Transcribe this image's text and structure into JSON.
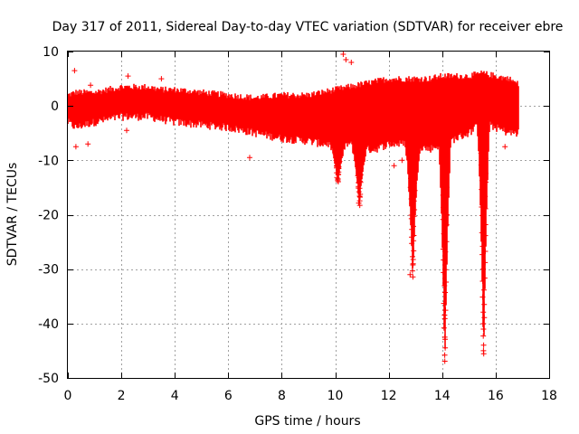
{
  "chart_data": {
    "type": "scatter",
    "title": "Day 317 of 2011, Sidereal Day-to-day VTEC variation (SDTVAR) for receiver ebre",
    "xlabel": "GPS time / hours",
    "ylabel": "SDTVAR / TECUs",
    "xlim": [
      0,
      18
    ],
    "ylim": [
      -50,
      10
    ],
    "xticks": [
      0,
      2,
      4,
      6,
      8,
      10,
      12,
      14,
      16,
      18
    ],
    "yticks": [
      -50,
      -40,
      -30,
      -20,
      -10,
      0,
      10
    ],
    "grid": true,
    "marker": "+",
    "color": "#ff0000",
    "series": [
      {
        "name": "SDTVAR",
        "band": {
          "x": [
            0.0,
            0.3,
            0.6,
            1.0,
            1.5,
            2.0,
            2.5,
            3.0,
            3.5,
            4.0,
            5.0,
            6.0,
            7.0,
            8.0,
            9.0,
            9.5,
            10.0,
            10.5,
            11.0,
            11.5,
            12.0,
            12.5,
            13.0,
            13.5,
            14.0,
            14.5,
            15.0,
            15.5,
            16.0,
            16.5,
            16.85
          ],
          "upper": [
            2.0,
            2.5,
            2.5,
            2.5,
            3.0,
            3.5,
            3.5,
            3.5,
            3.0,
            3.0,
            2.5,
            2.0,
            1.5,
            2.0,
            2.0,
            2.5,
            3.0,
            3.5,
            4.0,
            4.5,
            5.0,
            5.0,
            5.0,
            5.0,
            5.5,
            5.5,
            5.5,
            6.0,
            5.5,
            5.0,
            4.0
          ],
          "lower": [
            -3.0,
            -4.0,
            -3.5,
            -3.0,
            -2.5,
            -2.0,
            -2.0,
            -2.0,
            -2.5,
            -3.0,
            -3.5,
            -4.0,
            -5.0,
            -6.0,
            -6.5,
            -7.0,
            -7.0,
            -7.0,
            -8.0,
            -8.0,
            -7.0,
            -7.0,
            -7.0,
            -8.0,
            -7.0,
            -6.0,
            -5.0,
            -3.0,
            -4.0,
            -5.0,
            -5.0
          ]
        },
        "dips": [
          {
            "center": 10.1,
            "width": 0.35,
            "min": -14
          },
          {
            "center": 10.9,
            "width": 0.3,
            "min": -18
          },
          {
            "center": 12.9,
            "width": 0.3,
            "min": -31
          },
          {
            "center": 14.1,
            "width": 0.25,
            "min": -47
          },
          {
            "center": 15.55,
            "width": 0.25,
            "min": -46
          }
        ],
        "spikes": [
          {
            "x": 0.25,
            "y": 6.5
          },
          {
            "x": 0.3,
            "y": -7.5
          },
          {
            "x": 0.75,
            "y": -7
          },
          {
            "x": 0.85,
            "y": 3.8
          },
          {
            "x": 2.25,
            "y": 5.5
          },
          {
            "x": 2.2,
            "y": -4.5
          },
          {
            "x": 3.5,
            "y": 5
          },
          {
            "x": 6.8,
            "y": -9.5
          },
          {
            "x": 10.3,
            "y": 9.5
          },
          {
            "x": 10.4,
            "y": 8.5
          },
          {
            "x": 10.6,
            "y": 8
          },
          {
            "x": 12.1,
            "y": -7
          },
          {
            "x": 12.2,
            "y": -11
          },
          {
            "x": 12.5,
            "y": -10
          },
          {
            "x": 12.8,
            "y": -31
          },
          {
            "x": 16.35,
            "y": -7.5
          },
          {
            "x": 16.5,
            "y": 4.5
          }
        ]
      }
    ]
  }
}
